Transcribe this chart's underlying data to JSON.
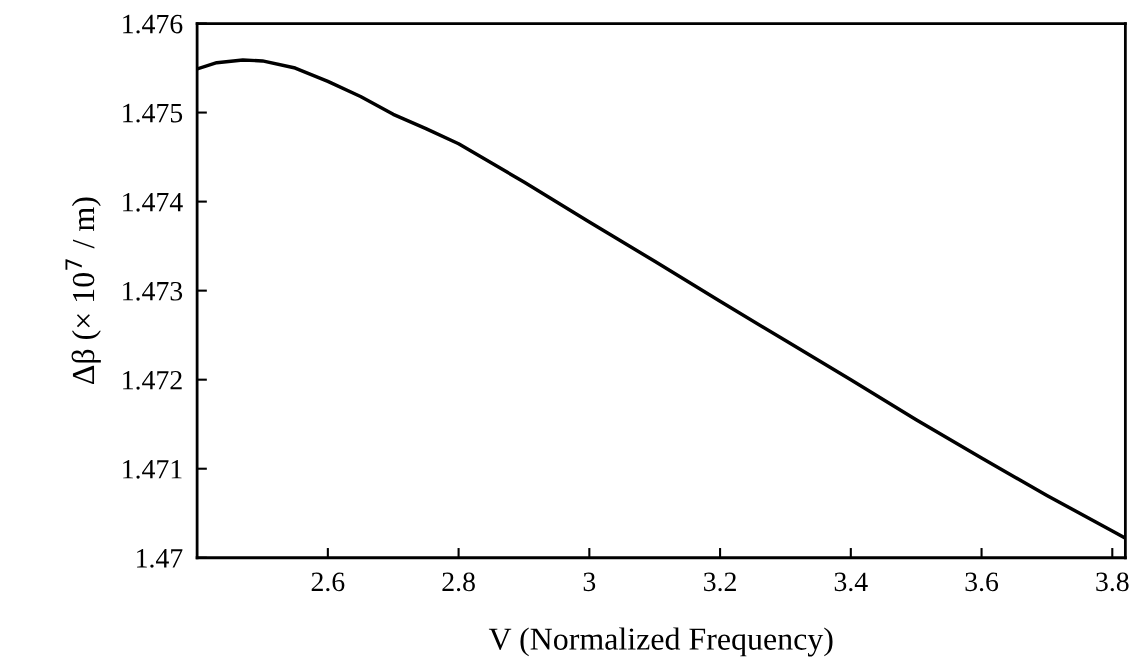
{
  "chart_data": {
    "type": "line",
    "xlabel": "V (Normalized Frequency)",
    "ylabel": "Δβ (× 10$^{7}$ / m)",
    "x": [
      2.4,
      2.43,
      2.47,
      2.5,
      2.55,
      2.6,
      2.65,
      2.7,
      2.75,
      2.8,
      2.9,
      3.0,
      3.1,
      3.2,
      3.3,
      3.4,
      3.5,
      3.6,
      3.7,
      3.8,
      3.82
    ],
    "series": [
      {
        "color": "#000000",
        "values": [
          1.47549,
          1.47556,
          1.47559,
          1.47558,
          1.4755,
          1.47535,
          1.47518,
          1.47498,
          1.47482,
          1.47465,
          1.47422,
          1.47377,
          1.47333,
          1.47288,
          1.47244,
          1.472,
          1.47155,
          1.47112,
          1.4707,
          1.4703,
          1.47022
        ]
      }
    ],
    "xlim": [
      2.4,
      3.82
    ],
    "ylim": [
      1.47,
      1.476
    ],
    "xticks": [
      2.6,
      2.8,
      3,
      3.2,
      3.4,
      3.6,
      3.8
    ],
    "yticks": [
      1.47,
      1.471,
      1.472,
      1.473,
      1.474,
      1.475,
      1.476
    ],
    "grid": false,
    "legend": false,
    "marker": "none",
    "line_style": "solid"
  }
}
